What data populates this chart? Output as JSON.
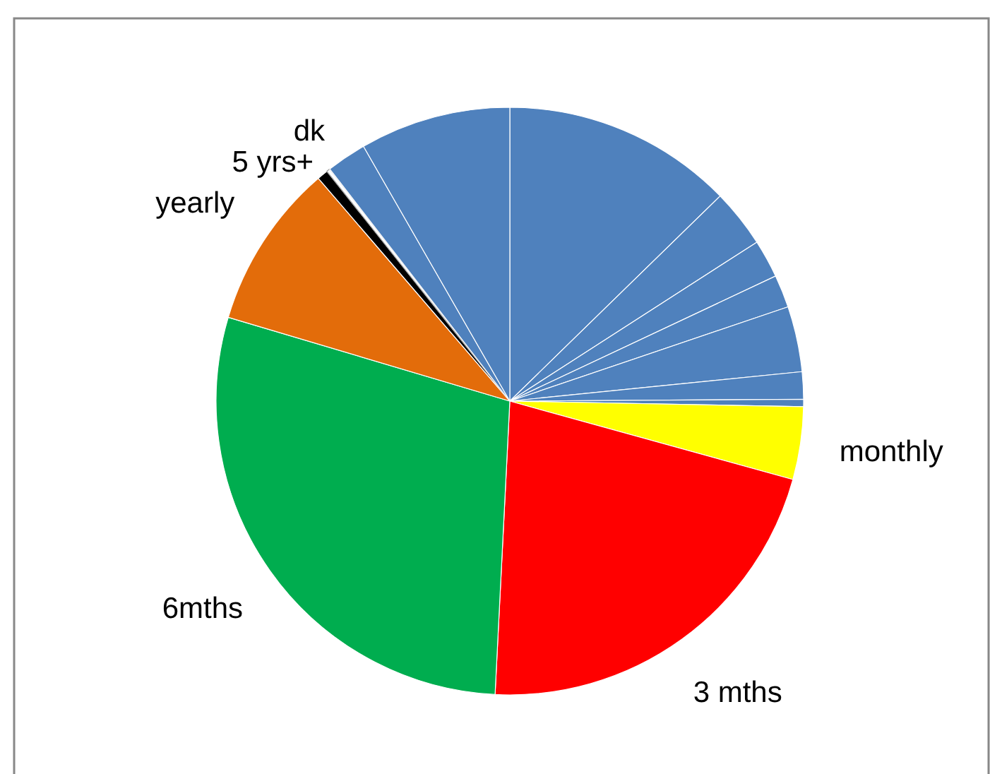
{
  "chart_data": {
    "type": "pie",
    "categories": [
      null,
      null,
      null,
      null,
      null,
      null,
      null,
      "monthly",
      "3 mths",
      "6mths",
      "yearly",
      "5 yrs+",
      "dk",
      null,
      null
    ],
    "values": [
      12.7,
      3.2,
      2.1,
      1.8,
      3.6,
      1.5,
      0.4,
      4.0,
      21.5,
      28.8,
      9.1,
      0.6,
      0.2,
      2.2,
      8.3
    ],
    "colors": [
      "#4f81bd",
      "#4f81bd",
      "#4f81bd",
      "#4f81bd",
      "#4f81bd",
      "#4f81bd",
      "#4f81bd",
      "#ffff00",
      "#ff0000",
      "#00ad4f",
      "#e36c0a",
      "#000000",
      "#ffffff",
      "#4f81bd",
      "#4f81bd"
    ]
  }
}
